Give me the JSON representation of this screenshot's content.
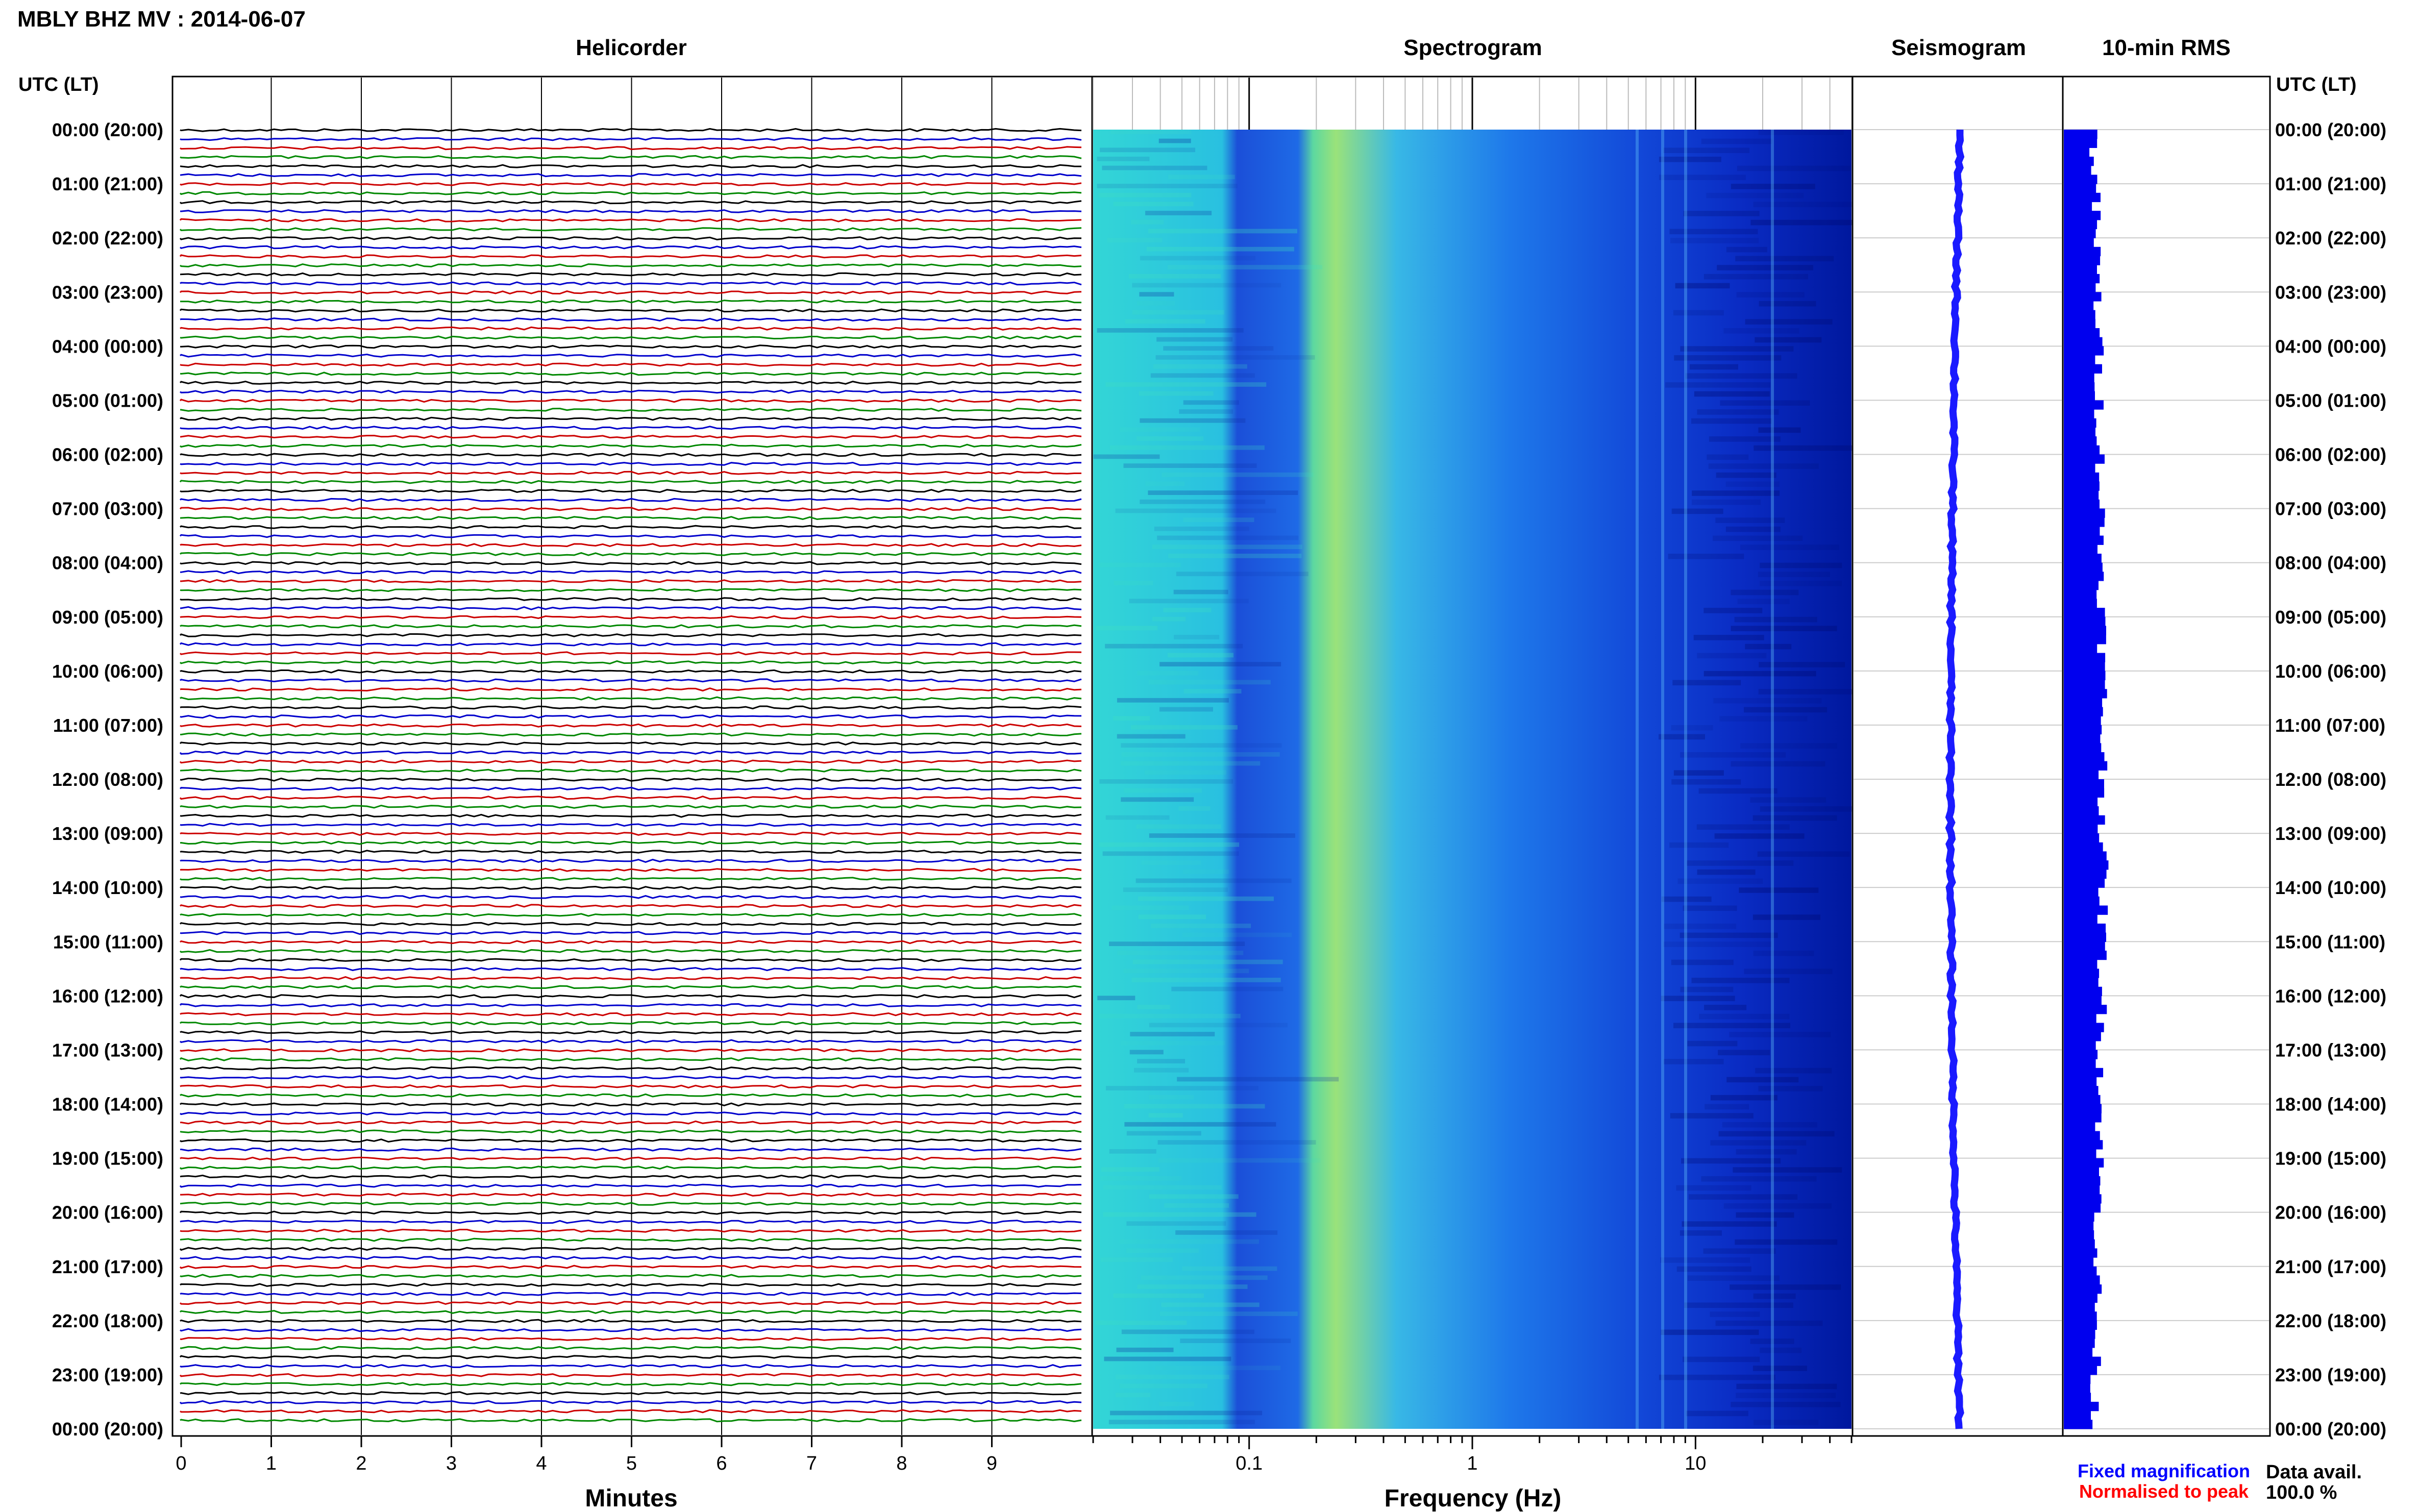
{
  "header": {
    "station_title": "MBLY BHZ MV : 2014-06-07",
    "utc_lt_left": "UTC (LT)",
    "utc_lt_right": "UTC (LT)"
  },
  "panels": {
    "helicorder": "Helicorder",
    "spectrogram": "Spectrogram",
    "seismogram": "Seismogram",
    "rms": "10-min RMS"
  },
  "time_labels": [
    "00:00 (20:00)",
    "01:00 (21:00)",
    "02:00 (22:00)",
    "03:00 (23:00)",
    "04:00 (00:00)",
    "05:00 (01:00)",
    "06:00 (02:00)",
    "07:00 (03:00)",
    "08:00 (04:00)",
    "09:00 (05:00)",
    "10:00 (06:00)",
    "11:00 (07:00)",
    "12:00 (08:00)",
    "13:00 (09:00)",
    "14:00 (10:00)",
    "15:00 (11:00)",
    "16:00 (12:00)",
    "17:00 (13:00)",
    "18:00 (14:00)",
    "19:00 (15:00)",
    "20:00 (16:00)",
    "21:00 (17:00)",
    "22:00 (18:00)",
    "23:00 (19:00)",
    "00:00 (20:00)"
  ],
  "footer": {
    "minutes_label": "Minutes",
    "frequency_label": "Frequency (Hz)",
    "fixed_magnification": "Fixed magnification",
    "normalised_to_peak": "Normalised to peak",
    "data_avail_label": "Data avail.",
    "data_avail_value": "100.0 %"
  },
  "colors": {
    "trace_cycle": [
      "#000000",
      "#0000cc",
      "#cc0000",
      "#008800"
    ],
    "fixed_magnification": "#0000ff",
    "normalised_to_peak": "#ff0000",
    "seismogram": "#1a1aff",
    "rms": "#0000ee",
    "spectro_low": "#00008b",
    "spectro_high": "#f0f040"
  },
  "chart_data": [
    {
      "type": "line",
      "name": "helicorder",
      "xlabel": "Minutes",
      "x_ticks": [
        0,
        1,
        2,
        3,
        4,
        5,
        6,
        7,
        8,
        9
      ],
      "xlim": [
        0,
        10
      ],
      "rows_per_hour": 6,
      "hours": 24,
      "trace_color_cycle": [
        "black",
        "blue",
        "red",
        "green"
      ]
    },
    {
      "type": "heatmap",
      "name": "spectrogram",
      "xlabel": "Frequency (Hz)",
      "x_scale": "log",
      "x_ticks": [
        0.1,
        1,
        10
      ],
      "x_tick_labels": [
        "0.1",
        "1",
        "10"
      ],
      "xlim": [
        0.02,
        50
      ]
    },
    {
      "type": "line",
      "name": "seismogram",
      "note_labels": []
    },
    {
      "type": "bar",
      "name": "10-min RMS"
    }
  ]
}
